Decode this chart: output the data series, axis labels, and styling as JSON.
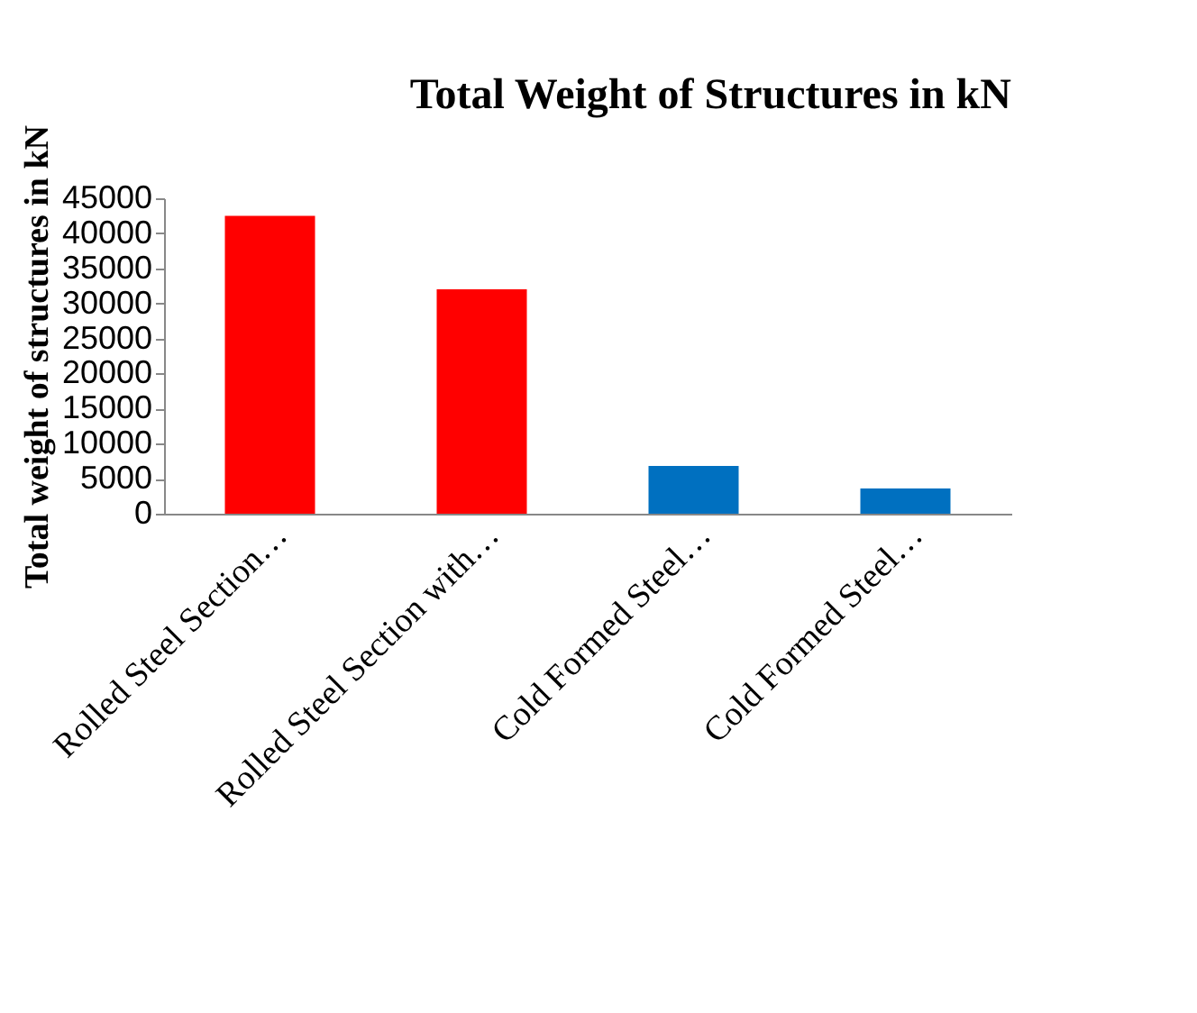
{
  "chart_data": {
    "type": "bar",
    "title": "Total  Weight  of  Structures in kN",
    "ylabel": "Total weight of structures in kN",
    "categories": [
      "Rolled Steel Section…",
      "Rolled Steel Section with…",
      "Cold Formed Steel…",
      "Cold Formed Steel…"
    ],
    "values": [
      42500,
      32000,
      6800,
      3600
    ],
    "colors": [
      "#ff0000",
      "#ff0000",
      "#0070c0",
      "#0070c0"
    ],
    "ylim": [
      0,
      45000
    ],
    "yticks": [
      0,
      5000,
      10000,
      15000,
      20000,
      25000,
      30000,
      35000,
      40000,
      45000
    ],
    "grid": false,
    "legend": false
  }
}
